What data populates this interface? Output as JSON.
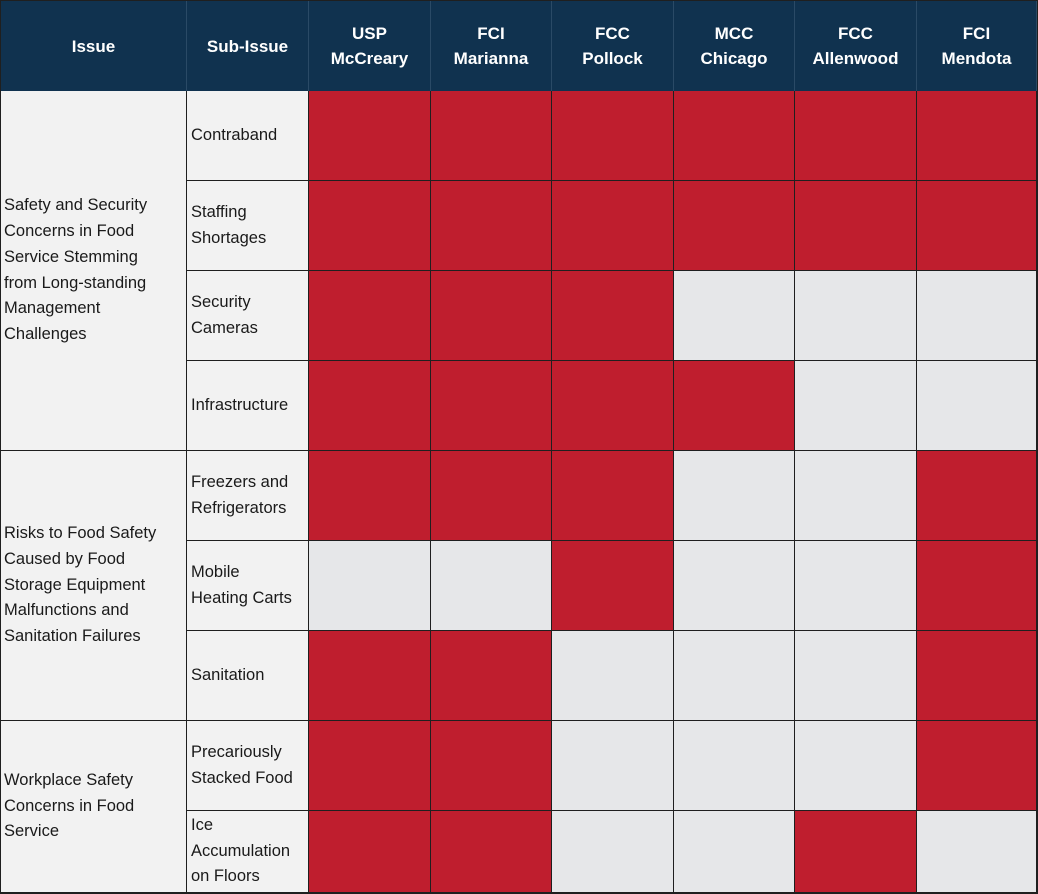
{
  "colors": {
    "header_bg": "#10324f",
    "header_text": "#ffffff",
    "finding": "#bf1e2e",
    "no_finding": "#e6e7e9",
    "label_bg": "#f2f2f2"
  },
  "chart_data": {
    "type": "table",
    "columns": [
      "Issue",
      "Sub-Issue",
      "USP\nMcCreary",
      "FCI\nMarianna",
      "FCC\nPollock",
      "MCC\nChicago",
      "FCC\nAllenwood",
      "FCI\nMendota"
    ],
    "institutions": [
      "USP\nMcCreary",
      "FCI\nMarianna",
      "FCC\nPollock",
      "MCC\nChicago",
      "FCC\nAllenwood",
      "FCI\nMendota"
    ],
    "issues": [
      {
        "label": "Safety and Security\nConcerns in Food\nService Stemming\nfrom Long-standing\nManagement\nChallenges",
        "sub_issues": [
          {
            "label": "Contraband",
            "values": [
              1,
              1,
              1,
              1,
              1,
              1
            ]
          },
          {
            "label": "Staffing\nShortages",
            "values": [
              1,
              1,
              1,
              1,
              1,
              1
            ]
          },
          {
            "label": "Security\nCameras",
            "values": [
              1,
              1,
              1,
              0,
              0,
              0
            ]
          },
          {
            "label": "Infrastructure",
            "values": [
              1,
              1,
              1,
              1,
              0,
              0
            ]
          }
        ]
      },
      {
        "label": "Risks to Food Safety\nCaused by Food\nStorage Equipment\nMalfunctions and\nSanitation Failures",
        "sub_issues": [
          {
            "label": "Freezers and\nRefrigerators",
            "values": [
              1,
              1,
              1,
              0,
              0,
              1
            ]
          },
          {
            "label": "Mobile\nHeating Carts",
            "values": [
              0,
              0,
              1,
              0,
              0,
              1
            ]
          },
          {
            "label": "Sanitation",
            "values": [
              1,
              1,
              0,
              0,
              0,
              1
            ]
          }
        ]
      },
      {
        "label": "Workplace Safety\nConcerns in Food\nService",
        "sub_issues": [
          {
            "label": "Precariously\nStacked Food",
            "values": [
              1,
              1,
              0,
              0,
              0,
              1
            ]
          },
          {
            "label": "Ice\nAccumulation\non Floors",
            "values": [
              1,
              1,
              0,
              0,
              1,
              0
            ]
          }
        ]
      }
    ]
  }
}
